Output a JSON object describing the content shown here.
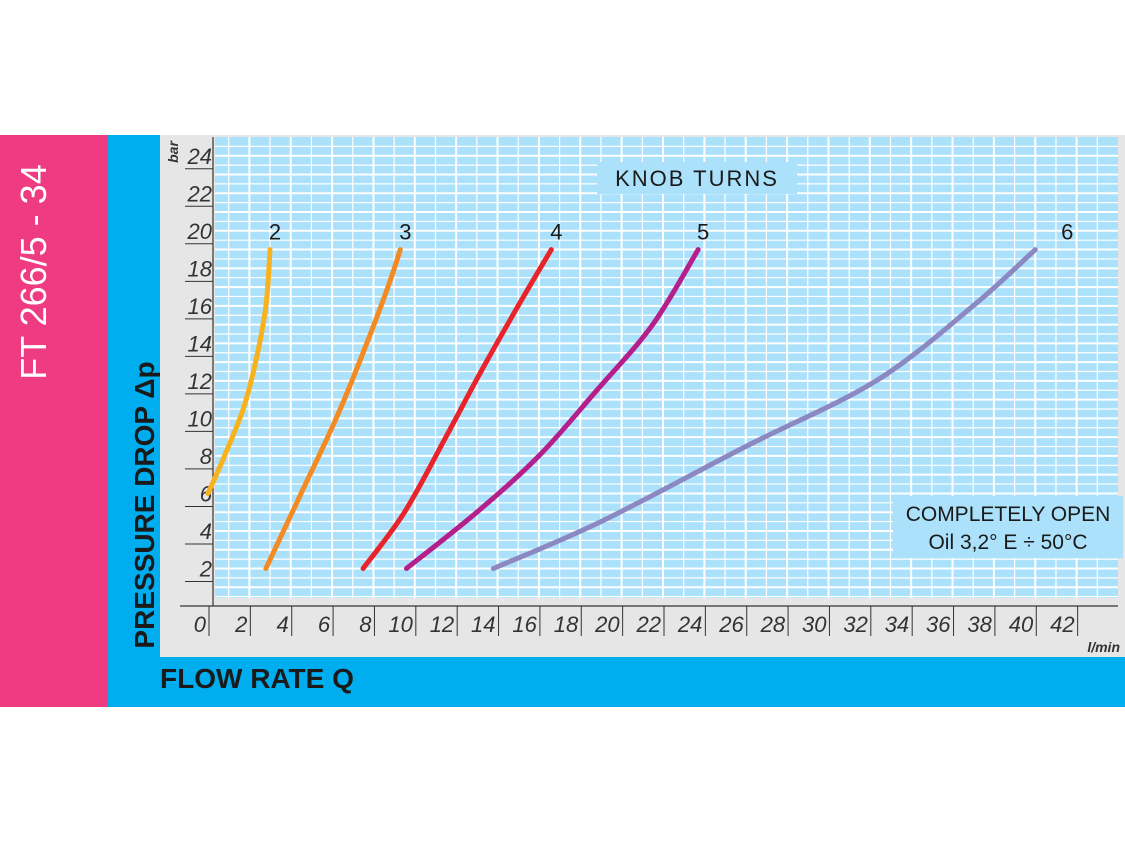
{
  "code_label": "FT 266/5 - 34",
  "colors": {
    "pink_band": "#EE3B82",
    "blue_band": "#00AEEF",
    "plot_bg": "#ABE1FA",
    "grid": "#FFFFFF",
    "axis_bg": "#E6E6E6"
  },
  "chart_data": {
    "type": "line",
    "xlabel": "FLOW RATE Q",
    "ylabel": "PRESSURE DROP Δp",
    "x_unit": "l/min",
    "y_unit": "bar",
    "xlim": [
      0,
      44
    ],
    "ylim": [
      0,
      25
    ],
    "x_ticks": [
      "0",
      "2",
      "4",
      "6",
      "8",
      "10",
      "12",
      "14",
      "16",
      "18",
      "20",
      "22",
      "24",
      "26",
      "28",
      "30",
      "32",
      "34",
      "36",
      "38",
      "40",
      "42"
    ],
    "y_ticks": [
      "2",
      "4",
      "6",
      "8",
      "10",
      "12",
      "14",
      "16",
      "18",
      "20",
      "22",
      "24"
    ],
    "grid": true,
    "legend_title": "KNOB TURNS",
    "annotation_lines": [
      "COMPLETELY OPEN",
      "Oil 3,2° E ÷ 50°C"
    ],
    "series": [
      {
        "name": "2",
        "color": "#F7B21E",
        "x": [
          0,
          0.8,
          1.7,
          2.3,
          2.8,
          3.0
        ],
        "y": [
          6,
          8,
          10.5,
          13,
          16,
          19
        ]
      },
      {
        "name": "3",
        "color": "#F38A22",
        "x": [
          2.8,
          4.5,
          6.2,
          7.5,
          8.7,
          9.3
        ],
        "y": [
          2,
          6,
          10,
          13.5,
          17,
          19
        ]
      },
      {
        "name": "4",
        "color": "#E8232A",
        "x": [
          7.5,
          9.5,
          11.5,
          13.2,
          15,
          16.6
        ],
        "y": [
          2,
          5,
          9,
          12.5,
          16,
          19
        ]
      },
      {
        "name": "5",
        "color": "#B51F8C",
        "x": [
          9.6,
          13,
          16,
          18.8,
          21.5,
          23.7
        ],
        "y": [
          2,
          5,
          8,
          11.5,
          15,
          19
        ]
      },
      {
        "name": "6",
        "color": "#8C88C2",
        "x": [
          13.8,
          19,
          26,
          32.3,
          37,
          40
        ],
        "y": [
          2,
          4.5,
          8.5,
          12,
          16,
          19
        ]
      }
    ]
  }
}
